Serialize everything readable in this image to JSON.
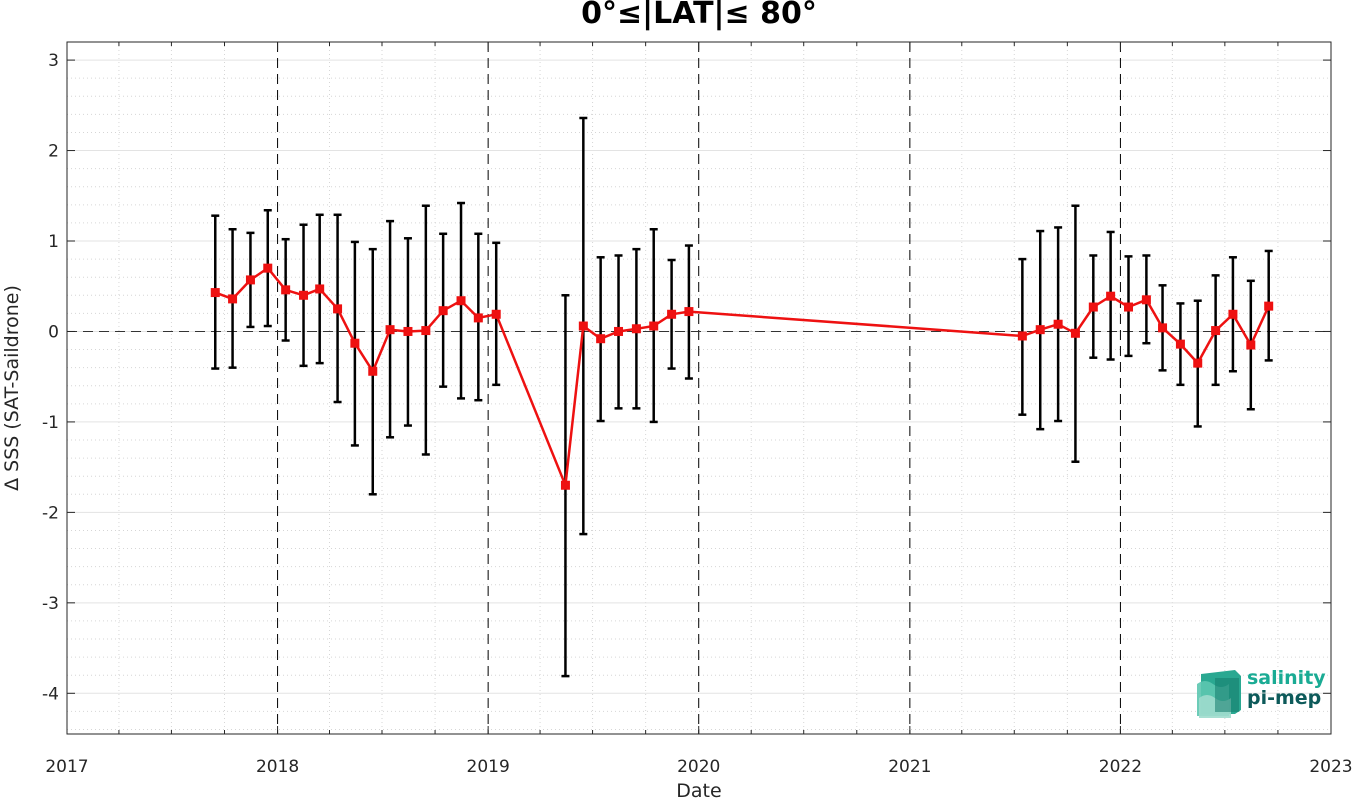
{
  "chart_data": {
    "type": "line",
    "title": "0°≤|LAT|≤ 80°",
    "xlabel": "Date",
    "ylabel": "Δ SSS (SAT-Saildrone)",
    "xlim": [
      "2017-01-01",
      "2023-01-01"
    ],
    "ylim": [
      -4.45,
      3.2
    ],
    "xticks": [
      "2017",
      "2018",
      "2019",
      "2020",
      "2021",
      "2022",
      "2023"
    ],
    "yticks": [
      -4,
      -3,
      -2,
      -1,
      0,
      1,
      2,
      3
    ],
    "grid": true,
    "year_lines": "dashed",
    "zero_line": "dashed",
    "series": [
      {
        "color": "#ee1111",
        "errorbar_color": "#000000",
        "marker": "square",
        "points": [
          {
            "x": "2017-09-15",
            "y": 0.43,
            "low": -0.41,
            "high": 1.28
          },
          {
            "x": "2017-10-15",
            "y": 0.36,
            "low": -0.4,
            "high": 1.13
          },
          {
            "x": "2017-11-15",
            "y": 0.57,
            "low": 0.05,
            "high": 1.09
          },
          {
            "x": "2017-12-15",
            "y": 0.7,
            "low": 0.06,
            "high": 1.34
          },
          {
            "x": "2018-01-15",
            "y": 0.46,
            "low": -0.1,
            "high": 1.02
          },
          {
            "x": "2018-02-15",
            "y": 0.4,
            "low": -0.38,
            "high": 1.18
          },
          {
            "x": "2018-03-15",
            "y": 0.47,
            "low": -0.35,
            "high": 1.29
          },
          {
            "x": "2018-04-15",
            "y": 0.25,
            "low": -0.78,
            "high": 1.29
          },
          {
            "x": "2018-05-15",
            "y": -0.13,
            "low": -1.26,
            "high": 0.99
          },
          {
            "x": "2018-06-15",
            "y": -0.44,
            "low": -1.8,
            "high": 0.91
          },
          {
            "x": "2018-07-15",
            "y": 0.02,
            "low": -1.17,
            "high": 1.22
          },
          {
            "x": "2018-08-15",
            "y": 0.0,
            "low": -1.04,
            "high": 1.03
          },
          {
            "x": "2018-09-15",
            "y": 0.01,
            "low": -1.36,
            "high": 1.39
          },
          {
            "x": "2018-10-15",
            "y": 0.23,
            "low": -0.61,
            "high": 1.08
          },
          {
            "x": "2018-11-15",
            "y": 0.34,
            "low": -0.74,
            "high": 1.42
          },
          {
            "x": "2018-12-15",
            "y": 0.15,
            "low": -0.76,
            "high": 1.08
          },
          {
            "x": "2019-01-15",
            "y": 0.19,
            "low": -0.59,
            "high": 0.98
          },
          {
            "x": "2019-05-15",
            "y": -1.7,
            "low": -3.81,
            "high": 0.4
          },
          {
            "x": "2019-06-15",
            "y": 0.06,
            "low": -2.24,
            "high": 2.36
          },
          {
            "x": "2019-07-15",
            "y": -0.08,
            "low": -0.99,
            "high": 0.82
          },
          {
            "x": "2019-08-15",
            "y": 0.0,
            "low": -0.85,
            "high": 0.84
          },
          {
            "x": "2019-09-15",
            "y": 0.03,
            "low": -0.85,
            "high": 0.91
          },
          {
            "x": "2019-10-15",
            "y": 0.06,
            "low": -1.0,
            "high": 1.13
          },
          {
            "x": "2019-11-15",
            "y": 0.19,
            "low": -0.41,
            "high": 0.79
          },
          {
            "x": "2019-12-15",
            "y": 0.22,
            "low": -0.52,
            "high": 0.95
          },
          {
            "x": "2021-07-15",
            "y": -0.05,
            "low": -0.92,
            "high": 0.8
          },
          {
            "x": "2021-08-15",
            "y": 0.02,
            "low": -1.08,
            "high": 1.11
          },
          {
            "x": "2021-09-15",
            "y": 0.08,
            "low": -0.99,
            "high": 1.15
          },
          {
            "x": "2021-10-15",
            "y": -0.02,
            "low": -1.44,
            "high": 1.39
          },
          {
            "x": "2021-11-15",
            "y": 0.27,
            "low": -0.29,
            "high": 0.84
          },
          {
            "x": "2021-12-15",
            "y": 0.39,
            "low": -0.31,
            "high": 1.1
          },
          {
            "x": "2022-01-15",
            "y": 0.27,
            "low": -0.27,
            "high": 0.83
          },
          {
            "x": "2022-02-15",
            "y": 0.35,
            "low": -0.13,
            "high": 0.84
          },
          {
            "x": "2022-03-15",
            "y": 0.04,
            "low": -0.43,
            "high": 0.51
          },
          {
            "x": "2022-04-15",
            "y": -0.14,
            "low": -0.59,
            "high": 0.31
          },
          {
            "x": "2022-05-15",
            "y": -0.35,
            "low": -1.05,
            "high": 0.34
          },
          {
            "x": "2022-06-15",
            "y": 0.01,
            "low": -0.59,
            "high": 0.62
          },
          {
            "x": "2022-07-15",
            "y": 0.19,
            "low": -0.44,
            "high": 0.82
          },
          {
            "x": "2022-08-15",
            "y": -0.15,
            "low": -0.86,
            "high": 0.56
          },
          {
            "x": "2022-09-15",
            "y": 0.28,
            "low": -0.32,
            "high": 0.89
          }
        ]
      }
    ]
  },
  "logo": {
    "line1": "salinity",
    "line2": "pi-mep",
    "color1": "#1aab94",
    "color2": "#0d5a5a"
  }
}
